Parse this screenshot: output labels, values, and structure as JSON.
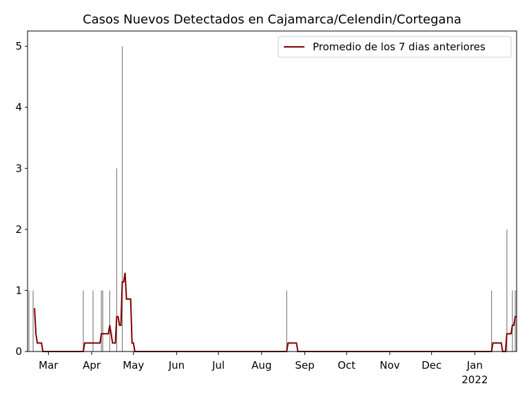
{
  "chart_data": {
    "type": "bar",
    "title": "Casos Nuevos Detectados en Cajamarca/Celendin/Cortegana",
    "xlim": [
      45,
      396
    ],
    "xticks": [
      {
        "value": 60,
        "label": "Mar"
      },
      {
        "value": 91,
        "label": "Apr"
      },
      {
        "value": 121,
        "label": "May"
      },
      {
        "value": 152,
        "label": "Jun"
      },
      {
        "value": 182,
        "label": "Jul"
      },
      {
        "value": 213,
        "label": "Aug"
      },
      {
        "value": 244,
        "label": "Sep"
      },
      {
        "value": 274,
        "label": "Oct"
      },
      {
        "value": 305,
        "label": "Nov"
      },
      {
        "value": 335,
        "label": "Dec"
      },
      {
        "value": 366,
        "label": "Jan\n2022"
      }
    ],
    "ylim": [
      0,
      5.25
    ],
    "yticks": [
      0,
      1,
      2,
      3,
      4,
      5
    ],
    "legend": "upper right",
    "series": [
      {
        "type": "bar",
        "color": "#808080",
        "x": [
          46,
          49,
          85,
          92,
          98,
          99,
          104,
          109,
          113,
          231,
          378,
          389,
          393,
          395,
          396
        ],
        "values": [
          1,
          1,
          1,
          1,
          1,
          1,
          1,
          3,
          5,
          1,
          1,
          2,
          1,
          1,
          1
        ]
      },
      {
        "type": "line",
        "name": "Promedio de los 7 dias anteriores",
        "color": "#800000",
        "x": [
          50,
          51,
          52,
          55,
          56,
          85,
          86,
          97,
          98,
          103,
          104,
          105,
          106,
          108,
          109,
          110,
          111,
          112,
          113,
          114,
          115,
          116,
          119,
          120,
          121,
          122,
          231,
          232,
          238,
          239,
          378,
          379,
          385,
          386,
          388,
          389,
          392,
          393,
          394,
          395,
          396
        ],
        "values": [
          0.71,
          0.29,
          0.14,
          0.14,
          0,
          0,
          0.14,
          0.14,
          0.29,
          0.29,
          0.43,
          0.29,
          0.14,
          0.14,
          0.57,
          0.57,
          0.43,
          0.43,
          1.14,
          1.14,
          1.29,
          0.86,
          0.86,
          0.14,
          0.14,
          0,
          0,
          0.14,
          0.14,
          0,
          0,
          0.14,
          0.14,
          0,
          0,
          0.29,
          0.29,
          0.43,
          0.43,
          0.57,
          0.57
        ]
      }
    ]
  }
}
